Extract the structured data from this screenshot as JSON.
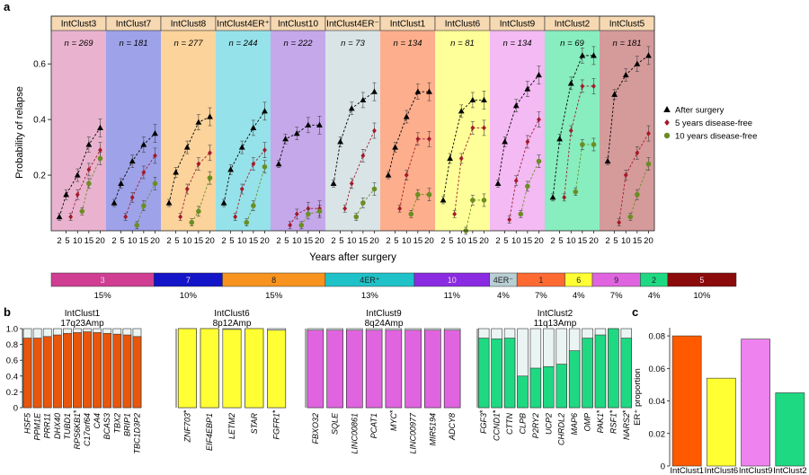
{
  "panel_labels": {
    "a": "a",
    "b": "b",
    "c": "c"
  },
  "legend": {
    "items": [
      {
        "label": "After surgery",
        "marker": "triangle",
        "color": "#000000"
      },
      {
        "label": "5 years disease-free",
        "marker": "diamond",
        "color": "#a31a2a"
      },
      {
        "label": "10 years disease-free",
        "marker": "circle",
        "color": "#6b8e23"
      }
    ]
  },
  "chart_data": [
    {
      "id": "relapse",
      "type": "line",
      "title": "",
      "xlabel": "Years after surgery",
      "ylabel": "Probability of relapse",
      "ylim": [
        0,
        0.72
      ],
      "yticks": [
        0.2,
        0.4,
        0.6
      ],
      "ytick_labels": [
        "0.2",
        "0.4",
        "0.6"
      ],
      "xtick_labels": [
        "2 5",
        "10",
        "15",
        "20"
      ],
      "xtick_values": [
        5,
        10,
        15,
        20
      ],
      "panels": [
        {
          "name": "IntClust3",
          "n": "n = 269",
          "bg": "#e9b3cf",
          "after": {
            "x": [
              2,
              5,
              10,
              15,
              20
            ],
            "y": [
              0.05,
              0.13,
              0.2,
              0.31,
              0.37
            ]
          },
          "dfs5": {
            "x": [
              7,
              10,
              15,
              20
            ],
            "y": [
              0.05,
              0.13,
              0.22,
              0.29
            ]
          },
          "dfs10": {
            "x": [
              12,
              15,
              20
            ],
            "y": [
              0.07,
              0.17,
              0.26
            ]
          }
        },
        {
          "name": "IntClust7",
          "n": "n = 181",
          "bg": "#9ea2e9",
          "after": {
            "x": [
              2,
              5,
              10,
              15,
              20
            ],
            "y": [
              0.1,
              0.17,
              0.25,
              0.31,
              0.35
            ]
          },
          "dfs5": {
            "x": [
              7,
              10,
              15,
              20
            ],
            "y": [
              0.05,
              0.12,
              0.21,
              0.27
            ]
          },
          "dfs10": {
            "x": [
              12,
              15,
              20
            ],
            "y": [
              0.02,
              0.09,
              0.17
            ]
          }
        },
        {
          "name": "IntClust8",
          "n": "n = 277",
          "bg": "#fbd39b",
          "after": {
            "x": [
              2,
              5,
              10,
              15,
              20
            ],
            "y": [
              0.1,
              0.21,
              0.3,
              0.39,
              0.41
            ]
          },
          "dfs5": {
            "x": [
              7,
              10,
              15,
              20
            ],
            "y": [
              0.05,
              0.15,
              0.24,
              0.28
            ]
          },
          "dfs10": {
            "x": [
              12,
              15,
              20
            ],
            "y": [
              0.03,
              0.07,
              0.19
            ]
          }
        },
        {
          "name": "IntClust4ER⁺",
          "n": "n = 244",
          "bg": "#96e2ea",
          "after": {
            "x": [
              2,
              5,
              10,
              15,
              20
            ],
            "y": [
              0.1,
              0.22,
              0.3,
              0.37,
              0.43
            ]
          },
          "dfs5": {
            "x": [
              7,
              10,
              15,
              20
            ],
            "y": [
              0.05,
              0.15,
              0.24,
              0.29
            ]
          },
          "dfs10": {
            "x": [
              12,
              15,
              20
            ],
            "y": [
              0.03,
              0.09,
              0.23
            ]
          }
        },
        {
          "name": "IntClust10",
          "n": "n = 222",
          "bg": "#c5a8ea",
          "after": {
            "x": [
              2,
              5,
              10,
              15,
              20
            ],
            "y": [
              0.24,
              0.33,
              0.35,
              0.38,
              0.38
            ]
          },
          "dfs5": {
            "x": [
              7,
              10,
              15,
              20
            ],
            "y": [
              0.02,
              0.06,
              0.08,
              0.08
            ]
          },
          "dfs10": {
            "x": [
              12,
              15,
              20
            ],
            "y": [
              0.02,
              0.06,
              0.07
            ]
          }
        },
        {
          "name": "IntClust4ER⁻",
          "n": "n = 73",
          "bg": "#d9e4e6",
          "after": {
            "x": [
              2,
              5,
              10,
              15,
              20
            ],
            "y": [
              0.17,
              0.32,
              0.44,
              0.47,
              0.5
            ]
          },
          "dfs5": {
            "x": [
              7,
              10,
              15,
              20
            ],
            "y": [
              0.08,
              0.17,
              0.27,
              0.36
            ]
          },
          "dfs10": {
            "x": [
              12,
              15,
              20
            ],
            "y": [
              0.05,
              0.1,
              0.15
            ]
          }
        },
        {
          "name": "IntClust1",
          "n": "n = 134",
          "bg": "#fdae8c",
          "after": {
            "x": [
              2,
              5,
              10,
              15,
              20
            ],
            "y": [
              0.2,
              0.3,
              0.41,
              0.5,
              0.5
            ]
          },
          "dfs5": {
            "x": [
              7,
              10,
              15,
              20
            ],
            "y": [
              0.08,
              0.2,
              0.33,
              0.33
            ]
          },
          "dfs10": {
            "x": [
              12,
              15,
              20
            ],
            "y": [
              0.06,
              0.13,
              0.13
            ]
          }
        },
        {
          "name": "IntClust6",
          "n": "n = 81",
          "bg": "#ffff99",
          "after": {
            "x": [
              2,
              5,
              10,
              15,
              20
            ],
            "y": [
              0.11,
              0.26,
              0.43,
              0.47,
              0.47
            ]
          },
          "dfs5": {
            "x": [
              7,
              10,
              15,
              20
            ],
            "y": [
              0.06,
              0.26,
              0.37,
              0.37
            ]
          },
          "dfs10": {
            "x": [
              12,
              15,
              20
            ],
            "y": [
              0.0,
              0.11,
              0.11
            ]
          }
        },
        {
          "name": "IntClust9",
          "n": "n = 134",
          "bg": "#f3baf3",
          "after": {
            "x": [
              2,
              5,
              10,
              15,
              20
            ],
            "y": [
              0.17,
              0.32,
              0.45,
              0.51,
              0.56
            ]
          },
          "dfs5": {
            "x": [
              7,
              10,
              15,
              20
            ],
            "y": [
              0.04,
              0.18,
              0.32,
              0.4
            ]
          },
          "dfs10": {
            "x": [
              12,
              15,
              20
            ],
            "y": [
              0.06,
              0.16,
              0.25
            ]
          }
        },
        {
          "name": "IntClust2",
          "n": "n = 69",
          "bg": "#88edbf",
          "after": {
            "x": [
              2,
              5,
              10,
              15,
              20
            ],
            "y": [
              0.12,
              0.33,
              0.53,
              0.63,
              0.63
            ]
          },
          "dfs5": {
            "x": [
              7,
              10,
              15,
              20
            ],
            "y": [
              0.12,
              0.36,
              0.52,
              0.52
            ]
          },
          "dfs10": {
            "x": [
              12,
              15,
              20
            ],
            "y": [
              0.14,
              0.31,
              0.31
            ]
          }
        },
        {
          "name": "IntClust5",
          "n": "n = 181",
          "bg": "#d59a9a",
          "after": {
            "x": [
              2,
              5,
              10,
              15,
              20
            ],
            "y": [
              0.25,
              0.49,
              0.56,
              0.6,
              0.63
            ]
          },
          "dfs5": {
            "x": [
              7,
              10,
              15,
              20
            ],
            "y": [
              0.03,
              0.2,
              0.28,
              0.35
            ]
          },
          "dfs10": {
            "x": [
              12,
              15,
              20
            ],
            "y": [
              0.05,
              0.13,
              0.24
            ]
          }
        }
      ]
    },
    {
      "id": "proportion-bar",
      "type": "bar",
      "categories": [
        "3",
        "7",
        "8",
        "4ER⁺",
        "10",
        "4ER⁻",
        "1",
        "6",
        "9",
        "2",
        "5"
      ],
      "values": [
        15,
        10,
        15,
        13,
        11,
        4,
        7,
        4,
        7,
        4,
        10
      ],
      "value_labels": [
        "15%",
        "10%",
        "15%",
        "13%",
        "11%",
        "4%",
        "7%",
        "4%",
        "7%",
        "4%",
        "10%"
      ],
      "colors": [
        "#cf3e92",
        "#1414c8",
        "#f7931e",
        "#1ec2c8",
        "#8a2be2",
        "#b8cfd4",
        "#ff6a33",
        "#ffff33",
        "#e064e0",
        "#1fd982",
        "#8b0a0a"
      ]
    },
    {
      "id": "gene-proportions",
      "type": "bar",
      "ylim": [
        0,
        1.0
      ],
      "yticks": [
        0,
        0.2,
        0.4,
        0.6,
        0.8,
        1.0
      ],
      "ytick_labels": [
        "0",
        "0.2",
        "0.4",
        "0.6",
        "0.8",
        "1.0"
      ],
      "groups": [
        {
          "title": "IntClust1",
          "subtitle": "17q23Amp",
          "color": "#e8560c",
          "genes": [
            "HSF5",
            "PPM1E",
            "PRR11",
            "DHX40",
            "TUBD1",
            "RPS6KB1",
            "C17orf64",
            "CA4",
            "BCAS3",
            "TBX2",
            "BRIP1",
            "TBC1D3P2"
          ],
          "star": [
            false,
            false,
            false,
            false,
            false,
            true,
            false,
            false,
            false,
            false,
            false,
            false
          ],
          "values": [
            0.88,
            0.88,
            0.9,
            0.92,
            0.94,
            0.95,
            0.96,
            0.95,
            0.94,
            0.93,
            0.92,
            0.9
          ]
        },
        {
          "title": "IntClust6",
          "subtitle": "8p12Amp",
          "color": "#ffff33",
          "genes": [
            "ZNF703",
            "EIF4EBP1",
            "LETM2",
            "STAR",
            "FGFR1"
          ],
          "star": [
            true,
            false,
            false,
            false,
            true
          ],
          "values": [
            1.0,
            1.0,
            0.99,
            1.0,
            0.98
          ]
        },
        {
          "title": "IntClust9",
          "subtitle": "8q24Amp",
          "color": "#e064e0",
          "genes": [
            "FBXO32",
            "SQLE",
            "LINC00861",
            "PCAT1",
            "MYC",
            "LINC00977",
            "MIR5194",
            "ADCY8"
          ],
          "star": [
            false,
            false,
            false,
            false,
            true,
            false,
            false,
            false
          ],
          "values": [
            0.98,
            0.98,
            0.98,
            0.98,
            0.98,
            0.98,
            0.98,
            0.98
          ]
        },
        {
          "title": "IntClust2",
          "subtitle": "11q13Amp",
          "color": "#1fd982",
          "genes": [
            "FGF3",
            "CCND1",
            "CTTN",
            "CLPB",
            "P2RY2",
            "UCP2",
            "CHRDL2",
            "MAP6",
            "OMP",
            "PAK1",
            "RSF1",
            "NARS2"
          ],
          "star": [
            true,
            true,
            false,
            false,
            false,
            false,
            false,
            false,
            false,
            true,
            true,
            true
          ],
          "values": [
            0.88,
            0.87,
            0.88,
            0.4,
            0.5,
            0.52,
            0.55,
            0.72,
            0.88,
            0.92,
            1.0,
            0.88
          ]
        }
      ]
    },
    {
      "id": "er-proportion",
      "type": "bar",
      "ylabel": "ER⁺ proportion",
      "ylim": [
        0,
        0.085
      ],
      "yticks": [
        0,
        0.02,
        0.04,
        0.06,
        0.08
      ],
      "ytick_labels": [
        "0",
        "0.02",
        "0.04",
        "0.06",
        "0.08"
      ],
      "categories": [
        "IntClust1",
        "IntClust6",
        "IntClust9",
        "IntClust2"
      ],
      "values": [
        0.08,
        0.054,
        0.078,
        0.045
      ],
      "colors": [
        "#ff5a00",
        "#ffff33",
        "#ee82ee",
        "#1fd982"
      ]
    }
  ]
}
